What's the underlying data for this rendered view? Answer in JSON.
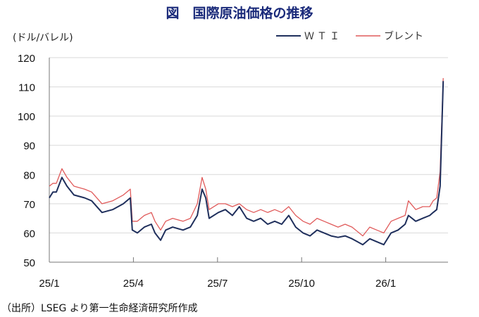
{
  "chart_data": {
    "type": "line",
    "title": "図　国際原油価格の推移",
    "ylabel": "(ドル/バレル)",
    "xlabel": "",
    "x_unit": "months since 2025-01",
    "ylim": [
      50,
      120
    ],
    "yticks": [
      50,
      60,
      70,
      80,
      90,
      100,
      110,
      120
    ],
    "xticks": [
      {
        "x": 0,
        "label": "25/1"
      },
      {
        "x": 3,
        "label": "25/4"
      },
      {
        "x": 6,
        "label": "25/7"
      },
      {
        "x": 9,
        "label": "25/10"
      },
      {
        "x": 12,
        "label": "26/1"
      }
    ],
    "xlim": [
      0,
      14.25
    ],
    "grid": true,
    "legend_position": "top-right",
    "x": [
      0,
      0.13,
      0.25,
      0.45,
      0.63,
      0.88,
      1.26,
      1.51,
      1.88,
      2.26,
      2.64,
      2.89,
      2.96,
      3.14,
      3.39,
      3.64,
      3.77,
      3.97,
      4.15,
      4.4,
      4.77,
      5.03,
      5.28,
      5.45,
      5.58,
      5.7,
      6.03,
      6.28,
      6.53,
      6.78,
      7.04,
      7.29,
      7.54,
      7.79,
      8.04,
      8.29,
      8.54,
      8.79,
      9.05,
      9.3,
      9.55,
      9.8,
      10.05,
      10.3,
      10.55,
      10.8,
      11.18,
      11.43,
      11.68,
      11.93,
      12.19,
      12.44,
      12.69,
      12.81,
      13.07,
      13.32,
      13.57,
      13.69,
      13.82,
      13.94,
      14.05
    ],
    "series": [
      {
        "name": "ＷＴＩ",
        "color": "#1f2f5c",
        "values": [
          72,
          74,
          74,
          79,
          76,
          73,
          72,
          71,
          67,
          68,
          70,
          72,
          61,
          60,
          62,
          63,
          60,
          57.5,
          61,
          62,
          61,
          62,
          66,
          75,
          72,
          65,
          67,
          68,
          66,
          69,
          65,
          64,
          65,
          63,
          64,
          63,
          66,
          62,
          60,
          59,
          61,
          60,
          59,
          58.5,
          59,
          58,
          56,
          58,
          57,
          56,
          60,
          61,
          63,
          66,
          64,
          65,
          66,
          67,
          68,
          76,
          112
        ]
      },
      {
        "name": "ブレント",
        "color": "#e05a5a",
        "values": [
          76,
          77,
          77,
          82,
          79,
          76,
          75,
          74,
          70,
          71,
          73,
          75,
          64,
          64,
          66,
          67,
          64,
          61,
          64,
          65,
          64,
          65,
          70,
          79,
          75,
          68,
          70,
          70,
          69,
          70,
          68,
          67,
          68,
          67,
          68,
          67,
          69,
          66,
          64,
          63,
          65,
          64,
          63,
          62,
          63,
          62,
          59,
          62,
          61,
          60,
          64,
          65,
          66,
          71,
          68,
          69,
          69,
          71,
          72,
          81,
          113
        ]
      }
    ],
    "source": "（出所）LSEG より第一生命経済研究所作成"
  }
}
